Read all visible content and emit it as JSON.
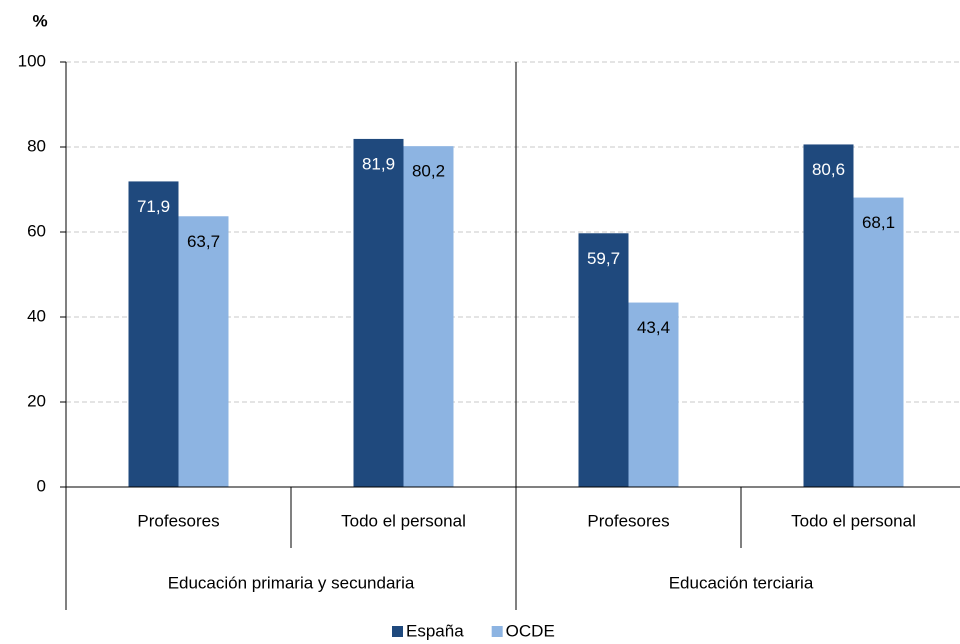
{
  "chart_data": {
    "type": "bar",
    "y_label": "%",
    "categories": [
      "Profesores",
      "Todo el personal",
      "Profesores",
      "Todo el personal"
    ],
    "groups": [
      "Educación primaria y secundaria",
      "Educación terciaria"
    ],
    "series": [
      {
        "name": "España",
        "color": "#1f497d",
        "values": [
          71.9,
          81.9,
          59.7,
          80.6
        ],
        "value_labels": [
          "71,9",
          "81,9",
          "59,7",
          "80,6"
        ]
      },
      {
        "name": "OCDE",
        "color": "#8db4e2",
        "values": [
          63.7,
          80.2,
          43.4,
          68.1
        ],
        "value_labels": [
          "63,7",
          "80,2",
          "43,4",
          "68,1"
        ]
      }
    ],
    "ylim": [
      0,
      100
    ],
    "yticks": [
      0,
      20,
      40,
      60,
      80,
      100
    ],
    "grid": true,
    "legend": "bottom"
  }
}
